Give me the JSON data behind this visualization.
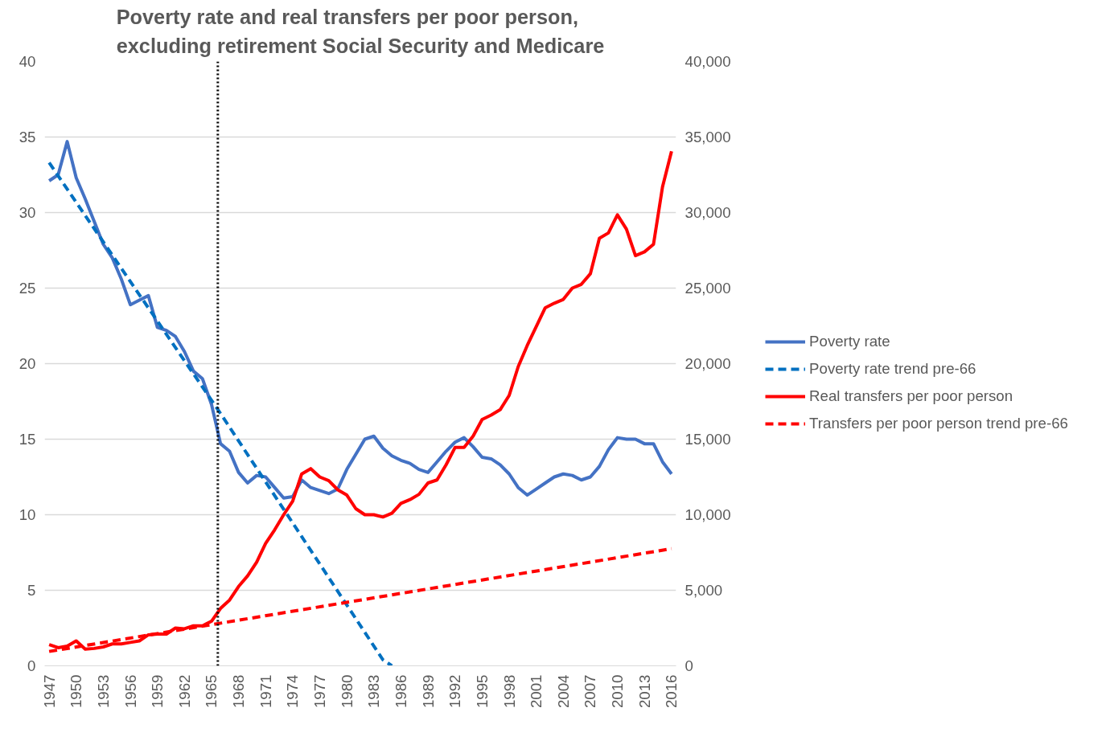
{
  "chart_data": {
    "type": "line",
    "title": "Poverty rate and real transfers per poor person,\nexcluding retirement Social Security and Medicare",
    "x": [
      1947,
      1948,
      1949,
      1950,
      1951,
      1952,
      1953,
      1954,
      1955,
      1956,
      1957,
      1958,
      1959,
      1960,
      1961,
      1962,
      1963,
      1964,
      1965,
      1966,
      1967,
      1968,
      1969,
      1970,
      1971,
      1972,
      1973,
      1974,
      1975,
      1976,
      1977,
      1978,
      1979,
      1980,
      1981,
      1982,
      1983,
      1984,
      1985,
      1986,
      1987,
      1988,
      1989,
      1990,
      1991,
      1992,
      1993,
      1994,
      1995,
      1996,
      1997,
      1998,
      1999,
      2000,
      2001,
      2002,
      2003,
      2004,
      2005,
      2006,
      2007,
      2008,
      2009,
      2010,
      2011,
      2012,
      2013,
      2014,
      2015,
      2016
    ],
    "xlim": [
      1946.5,
      2016.5
    ],
    "xticks": [
      1947,
      1950,
      1953,
      1956,
      1959,
      1962,
      1965,
      1968,
      1971,
      1974,
      1977,
      1980,
      1983,
      1986,
      1989,
      1992,
      1995,
      1998,
      2001,
      2004,
      2007,
      2010,
      2013,
      2016
    ],
    "ylim": [
      0,
      40
    ],
    "yticks": [
      0,
      5,
      10,
      15,
      20,
      25,
      30,
      35,
      40
    ],
    "y2lim": [
      0,
      40000
    ],
    "y2ticks": [
      0,
      {
        "value": 5000,
        "label": "5,000"
      },
      {
        "value": 10000,
        "label": "10,000"
      },
      {
        "value": 15000,
        "label": "15,000"
      },
      {
        "value": 20000,
        "label": "20,000"
      },
      {
        "value": 25000,
        "label": "25,000"
      },
      {
        "value": 30000,
        "label": "30,000"
      },
      {
        "value": 35000,
        "label": "35,000"
      },
      {
        "value": 40000,
        "label": "40,000"
      }
    ],
    "grid": "y",
    "legend": "right",
    "series": [
      {
        "name": "Poverty rate",
        "color": "#4472c4",
        "line_style": "solid",
        "axis": "y",
        "values": [
          32.1,
          32.5,
          34.7,
          32.3,
          30.9,
          29.4,
          27.9,
          27.0,
          25.6,
          23.9,
          24.2,
          24.5,
          22.4,
          22.2,
          21.8,
          20.8,
          19.5,
          19.0,
          17.3,
          14.7,
          14.2,
          12.8,
          12.1,
          12.6,
          12.5,
          11.8,
          11.1,
          11.2,
          12.3,
          11.8,
          11.6,
          11.4,
          11.7,
          13.0,
          14.0,
          15.0,
          15.2,
          14.4,
          13.9,
          13.6,
          13.4,
          13.0,
          12.8,
          13.5,
          14.2,
          14.8,
          15.1,
          14.5,
          13.8,
          13.7,
          13.3,
          12.7,
          11.8,
          11.3,
          11.7,
          12.1,
          12.5,
          12.7,
          12.6,
          12.3,
          12.5,
          13.2,
          14.3,
          15.1,
          15.0,
          15.0,
          14.7,
          14.7,
          13.5,
          12.7
        ]
      },
      {
        "name": "Poverty rate trend pre-66",
        "color": "#0070c0",
        "line_style": "dashed",
        "axis": "y",
        "x": [
          1947,
          1966,
          1984,
          1985
        ],
        "values": [
          33.3,
          16.7,
          0.4,
          0
        ]
      },
      {
        "name": "Real transfers per poor person",
        "color": "#ff0000",
        "line_style": "solid",
        "axis": "y2",
        "values": [
          1400,
          1200,
          1300,
          1650,
          1100,
          1150,
          1250,
          1450,
          1450,
          1550,
          1650,
          2050,
          2100,
          2100,
          2500,
          2450,
          2650,
          2650,
          2950,
          3800,
          4350,
          5250,
          5950,
          6850,
          8100,
          9000,
          10000,
          10900,
          12700,
          13050,
          12500,
          12250,
          11650,
          11300,
          10400,
          10000,
          10000,
          9850,
          10100,
          10750,
          11000,
          11350,
          12100,
          12300,
          13300,
          14450,
          14450,
          15200,
          16300,
          16600,
          16950,
          17900,
          19800,
          21200,
          22450,
          23700,
          24000,
          24250,
          25000,
          25250,
          25950,
          28300,
          28650,
          29850,
          28900,
          27150,
          27400,
          27900,
          31700,
          34050
        ]
      },
      {
        "name": "Transfers per poor person trend pre-66",
        "color": "#ff0000",
        "line_style": "dashed",
        "axis": "y2",
        "x": [
          1947,
          2016
        ],
        "values": [
          950,
          7750
        ]
      }
    ],
    "ref_lines": [
      {
        "axis": "x",
        "value": 1965.7,
        "label": null,
        "color": "#000000",
        "line_style": "dotted"
      }
    ]
  }
}
